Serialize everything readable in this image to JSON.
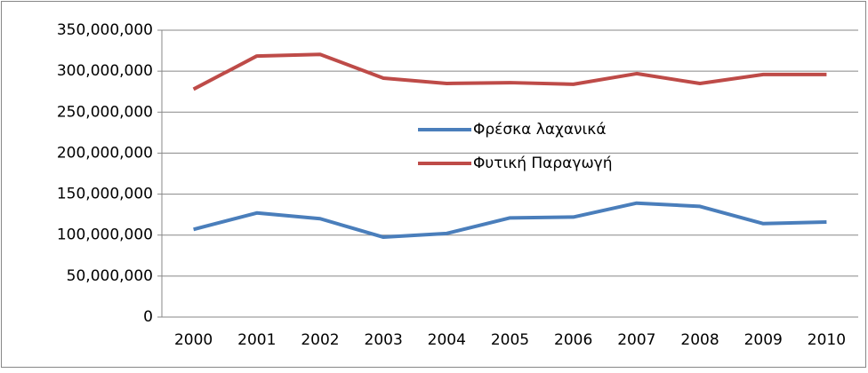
{
  "chart_data": {
    "type": "line",
    "categories": [
      "2000",
      "2001",
      "2002",
      "2003",
      "2004",
      "2005",
      "2006",
      "2007",
      "2008",
      "2009",
      "2010"
    ],
    "series": [
      {
        "name": "Φρέσκα λαχανικά",
        "color": "#4a7ebb",
        "values": [
          107000000,
          127000000,
          120000000,
          97500000,
          102000000,
          121000000,
          122000000,
          139000000,
          135000000,
          114000000,
          116000000
        ]
      },
      {
        "name": "Φυτική Παραγωγή",
        "color": "#be4b48",
        "values": [
          278000000,
          318500000,
          320500000,
          291500000,
          285000000,
          286000000,
          284000000,
          297000000,
          285000000,
          296000000,
          296000000
        ]
      }
    ],
    "ylim": [
      0,
      350000000
    ],
    "yticks": [
      0,
      {
        "value": 50000000,
        "label": "50,000,000"
      },
      {
        "value": 100000000,
        "label": "100,000,000"
      },
      {
        "value": 150000000,
        "label": "150,000,000"
      },
      {
        "value": 200000000,
        "label": "200,000,000"
      },
      {
        "value": 250000000,
        "label": "250,000,000"
      },
      {
        "value": 300000000,
        "label": "300,000,000"
      },
      {
        "value": 350000000,
        "label": "350,000,000"
      }
    ],
    "grid": true,
    "legend": "center"
  }
}
